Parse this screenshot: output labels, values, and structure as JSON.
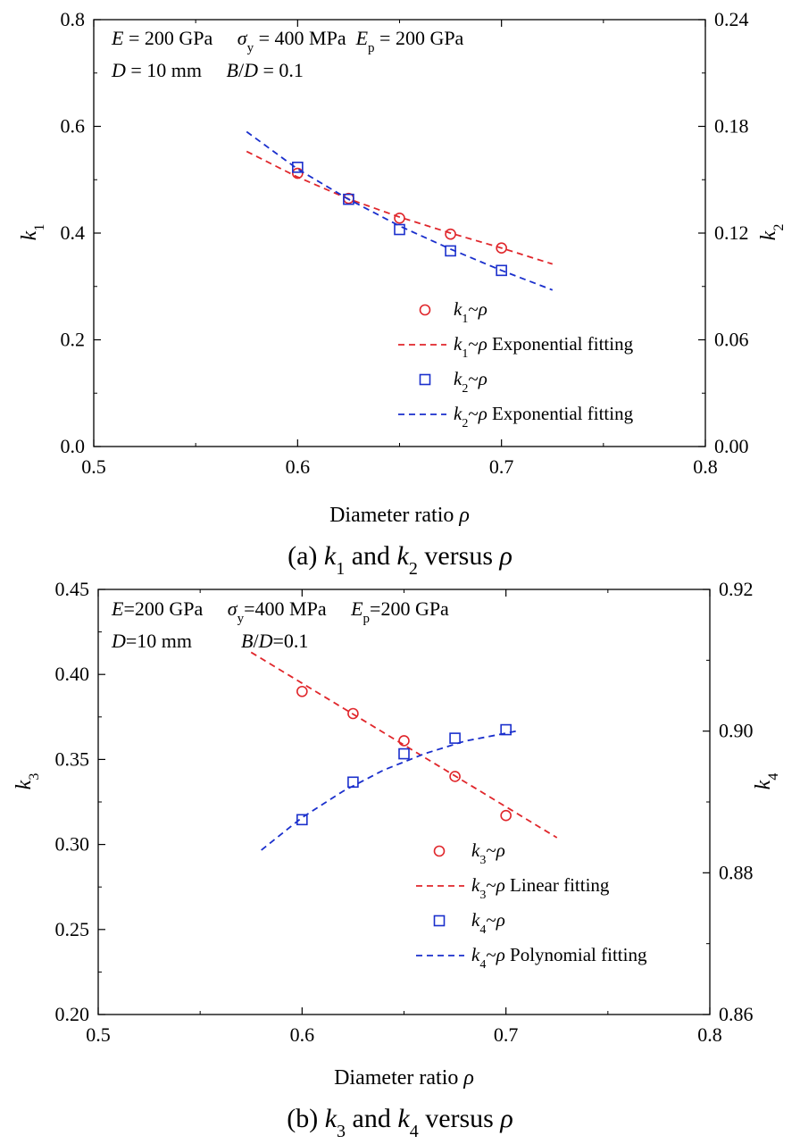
{
  "chart_data": [
    {
      "type": "scatter",
      "caption": {
        "prefix": "(a) ",
        "v1": "k",
        "s1": "1",
        "mid": " and ",
        "v2": "k",
        "s2": "2",
        "suffix": " versus ",
        "rho": "ρ"
      },
      "xlabel": "Diameter ratio",
      "xlabel_symbol": "ρ",
      "ylabel_left": {
        "v": "k",
        "s": "1"
      },
      "ylabel_right": {
        "v": "k",
        "s": "2"
      },
      "xlim": [
        0.5,
        0.8
      ],
      "ylim_left": [
        0.0,
        0.8
      ],
      "ylim_right": [
        0.0,
        0.24
      ],
      "xticks": [
        "0.5",
        "0.6",
        "0.7",
        "0.8"
      ],
      "yticks_left": [
        "0.0",
        "0.2",
        "0.4",
        "0.6",
        "0.8"
      ],
      "yticks_right": [
        "0.00",
        "0.06",
        "0.12",
        "0.18",
        "0.24"
      ],
      "annotation": {
        "line1": [
          {
            "t": "E",
            "i": true
          },
          {
            "t": " = 200 GPa     "
          },
          {
            "t": "σ",
            "i": true
          },
          {
            "t": "y",
            "sub": true
          },
          {
            "t": " = 400 MPa  "
          },
          {
            "t": "E",
            "i": true
          },
          {
            "t": "p",
            "sub": true
          },
          {
            "t": " = 200 GPa"
          }
        ],
        "line2": [
          {
            "t": "D",
            "i": true
          },
          {
            "t": " = 10 mm     "
          },
          {
            "t": "B",
            "i": true
          },
          {
            "t": "/"
          },
          {
            "t": "D",
            "i": true
          },
          {
            "t": " = 0.1"
          }
        ]
      },
      "series": [
        {
          "name": "k1~ρ",
          "axis": "left",
          "marker": "circle",
          "color": "#e0262b",
          "x": [
            0.6,
            0.625,
            0.65,
            0.675,
            0.7
          ],
          "y": [
            0.512,
            0.465,
            0.428,
            0.398,
            0.372
          ]
        },
        {
          "name": "k1~ρ Exponential fitting",
          "axis": "left",
          "line": "dashed",
          "color": "#e0262b",
          "x": [
            0.575,
            0.6,
            0.625,
            0.65,
            0.675,
            0.7,
            0.725
          ],
          "y": [
            0.553,
            0.505,
            0.464,
            0.43,
            0.4,
            0.372,
            0.342
          ]
        },
        {
          "name": "k2~ρ",
          "axis": "right",
          "marker": "square",
          "color": "#1a2fcc",
          "x": [
            0.6,
            0.625,
            0.65,
            0.675,
            0.7
          ],
          "y": [
            0.157,
            0.139,
            0.122,
            0.11,
            0.099
          ]
        },
        {
          "name": "k2~ρ Exponential fitting",
          "axis": "right",
          "line": "dashed",
          "color": "#1a2fcc",
          "x": [
            0.575,
            0.6,
            0.625,
            0.65,
            0.675,
            0.7,
            0.725
          ],
          "y": [
            0.177,
            0.156,
            0.139,
            0.124,
            0.111,
            0.099,
            0.088
          ]
        }
      ],
      "legend": [
        {
          "v": "k",
          "s": "1",
          "tail": "~ρ",
          "extra": "",
          "kind": "circle",
          "color": "#e0262b"
        },
        {
          "v": "k",
          "s": "1",
          "tail": "~ρ",
          "extra": " Exponential fitting",
          "kind": "dash",
          "color": "#e0262b"
        },
        {
          "v": "k",
          "s": "2",
          "tail": "~ρ",
          "extra": "",
          "kind": "square",
          "color": "#1a2fcc"
        },
        {
          "v": "k",
          "s": "2",
          "tail": "~ρ",
          "extra": " Exponential fitting",
          "kind": "dash",
          "color": "#1a2fcc"
        }
      ]
    },
    {
      "type": "scatter",
      "caption": {
        "prefix": "(b) ",
        "v1": "k",
        "s1": "3",
        "mid": " and ",
        "v2": "k",
        "s2": "4",
        "suffix": " versus ",
        "rho": "ρ"
      },
      "xlabel": "Diameter ratio",
      "xlabel_symbol": "ρ",
      "ylabel_left": {
        "v": "k",
        "s": "3"
      },
      "ylabel_right": {
        "v": "k",
        "s": "4"
      },
      "xlim": [
        0.5,
        0.8
      ],
      "ylim_left": [
        0.2,
        0.45
      ],
      "ylim_right": [
        0.86,
        0.92
      ],
      "xticks": [
        "0.5",
        "0.6",
        "0.7",
        "0.8"
      ],
      "yticks_left": [
        "0.20",
        "0.25",
        "0.30",
        "0.35",
        "0.40",
        "0.45"
      ],
      "yticks_right": [
        "0.86",
        "0.88",
        "0.90",
        "0.92"
      ],
      "annotation": {
        "line1": [
          {
            "t": "E",
            "i": true
          },
          {
            "t": "=200 GPa     "
          },
          {
            "t": "σ",
            "i": true
          },
          {
            "t": "y",
            "sub": true
          },
          {
            "t": "=400 MPa     "
          },
          {
            "t": "E",
            "i": true
          },
          {
            "t": "p",
            "sub": true
          },
          {
            "t": "=200 GPa"
          }
        ],
        "line2": [
          {
            "t": "D",
            "i": true
          },
          {
            "t": "=10 mm          "
          },
          {
            "t": "B",
            "i": true
          },
          {
            "t": "/"
          },
          {
            "t": "D",
            "i": true
          },
          {
            "t": "=0.1"
          }
        ]
      },
      "series": [
        {
          "name": "k3~ρ",
          "axis": "left",
          "marker": "circle",
          "color": "#e0262b",
          "x": [
            0.6,
            0.625,
            0.65,
            0.675,
            0.7
          ],
          "y": [
            0.39,
            0.377,
            0.361,
            0.34,
            0.317
          ]
        },
        {
          "name": "k3~ρ Linear fitting",
          "axis": "left",
          "line": "dashed",
          "color": "#e0262b",
          "x": [
            0.575,
            0.725
          ],
          "y": [
            0.413,
            0.304
          ]
        },
        {
          "name": "k4~ρ",
          "axis": "right",
          "marker": "square",
          "color": "#1a2fcc",
          "x": [
            0.6,
            0.625,
            0.65,
            0.675,
            0.7
          ],
          "y": [
            0.8875,
            0.8928,
            0.8968,
            0.899,
            0.9002
          ]
        },
        {
          "name": "k4~ρ Polynomial fitting",
          "axis": "right",
          "line": "dashed",
          "color": "#1a2fcc",
          "x": [
            0.58,
            0.6,
            0.62,
            0.64,
            0.66,
            0.68,
            0.7,
            0.705
          ],
          "y": [
            0.8832,
            0.8878,
            0.8915,
            0.8945,
            0.8968,
            0.8986,
            0.8997,
            0.9
          ]
        }
      ],
      "legend": [
        {
          "v": "k",
          "s": "3",
          "tail": "~ρ",
          "extra": "",
          "kind": "circle",
          "color": "#e0262b"
        },
        {
          "v": "k",
          "s": "3",
          "tail": "~ρ",
          "extra": " Linear fitting",
          "kind": "dash",
          "color": "#e0262b"
        },
        {
          "v": "k",
          "s": "4",
          "tail": "~ρ",
          "extra": "",
          "kind": "square",
          "color": "#1a2fcc"
        },
        {
          "v": "k",
          "s": "4",
          "tail": "~ρ",
          "extra": " Polynomial fitting",
          "kind": "dash",
          "color": "#1a2fcc"
        }
      ]
    }
  ]
}
